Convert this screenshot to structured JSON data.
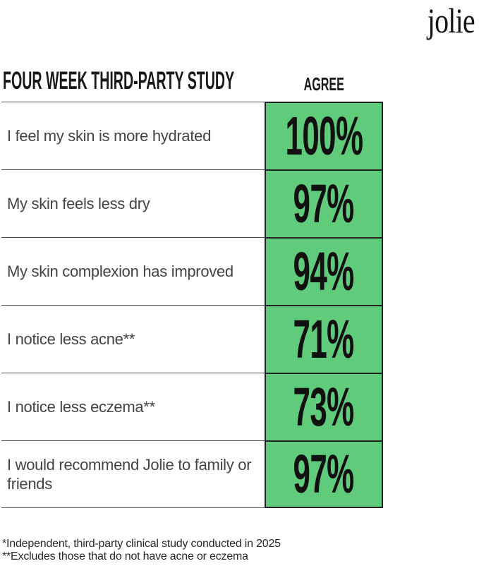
{
  "brand": {
    "logo_text": "jolie"
  },
  "header": {
    "title": "FOUR WEEK THIRD-PARTY STUDY",
    "agree_column_label": "AGREE"
  },
  "chart_data": {
    "type": "table",
    "title": "FOUR WEEK THIRD-PARTY STUDY",
    "columns": [
      "statement",
      "agree"
    ],
    "value_column_header": "AGREE",
    "rows": [
      {
        "statement": "I feel my skin is more hydrated",
        "agree_percent": 100,
        "agree_label": "100%"
      },
      {
        "statement": "My skin feels less dry",
        "agree_percent": 97,
        "agree_label": "97%"
      },
      {
        "statement": "My skin complexion has improved",
        "agree_percent": 94,
        "agree_label": "94%"
      },
      {
        "statement": "I notice less acne**",
        "agree_percent": 71,
        "agree_label": "71%"
      },
      {
        "statement": "I notice less eczema**",
        "agree_percent": 73,
        "agree_label": "73%"
      },
      {
        "statement": "I would recommend Jolie to family or friends",
        "agree_percent": 97,
        "agree_label": "97%"
      }
    ]
  },
  "footnotes": {
    "line1": "*Independent, third-party clinical study conducted in 2025",
    "line2": "**Excludes those that do not have acne or eczema"
  },
  "colors": {
    "accent_green": "#60cb7b",
    "cell_border": "#222222",
    "row_line": "#4d4d4d",
    "text_dark": "#191919",
    "text_gray": "#434343"
  }
}
